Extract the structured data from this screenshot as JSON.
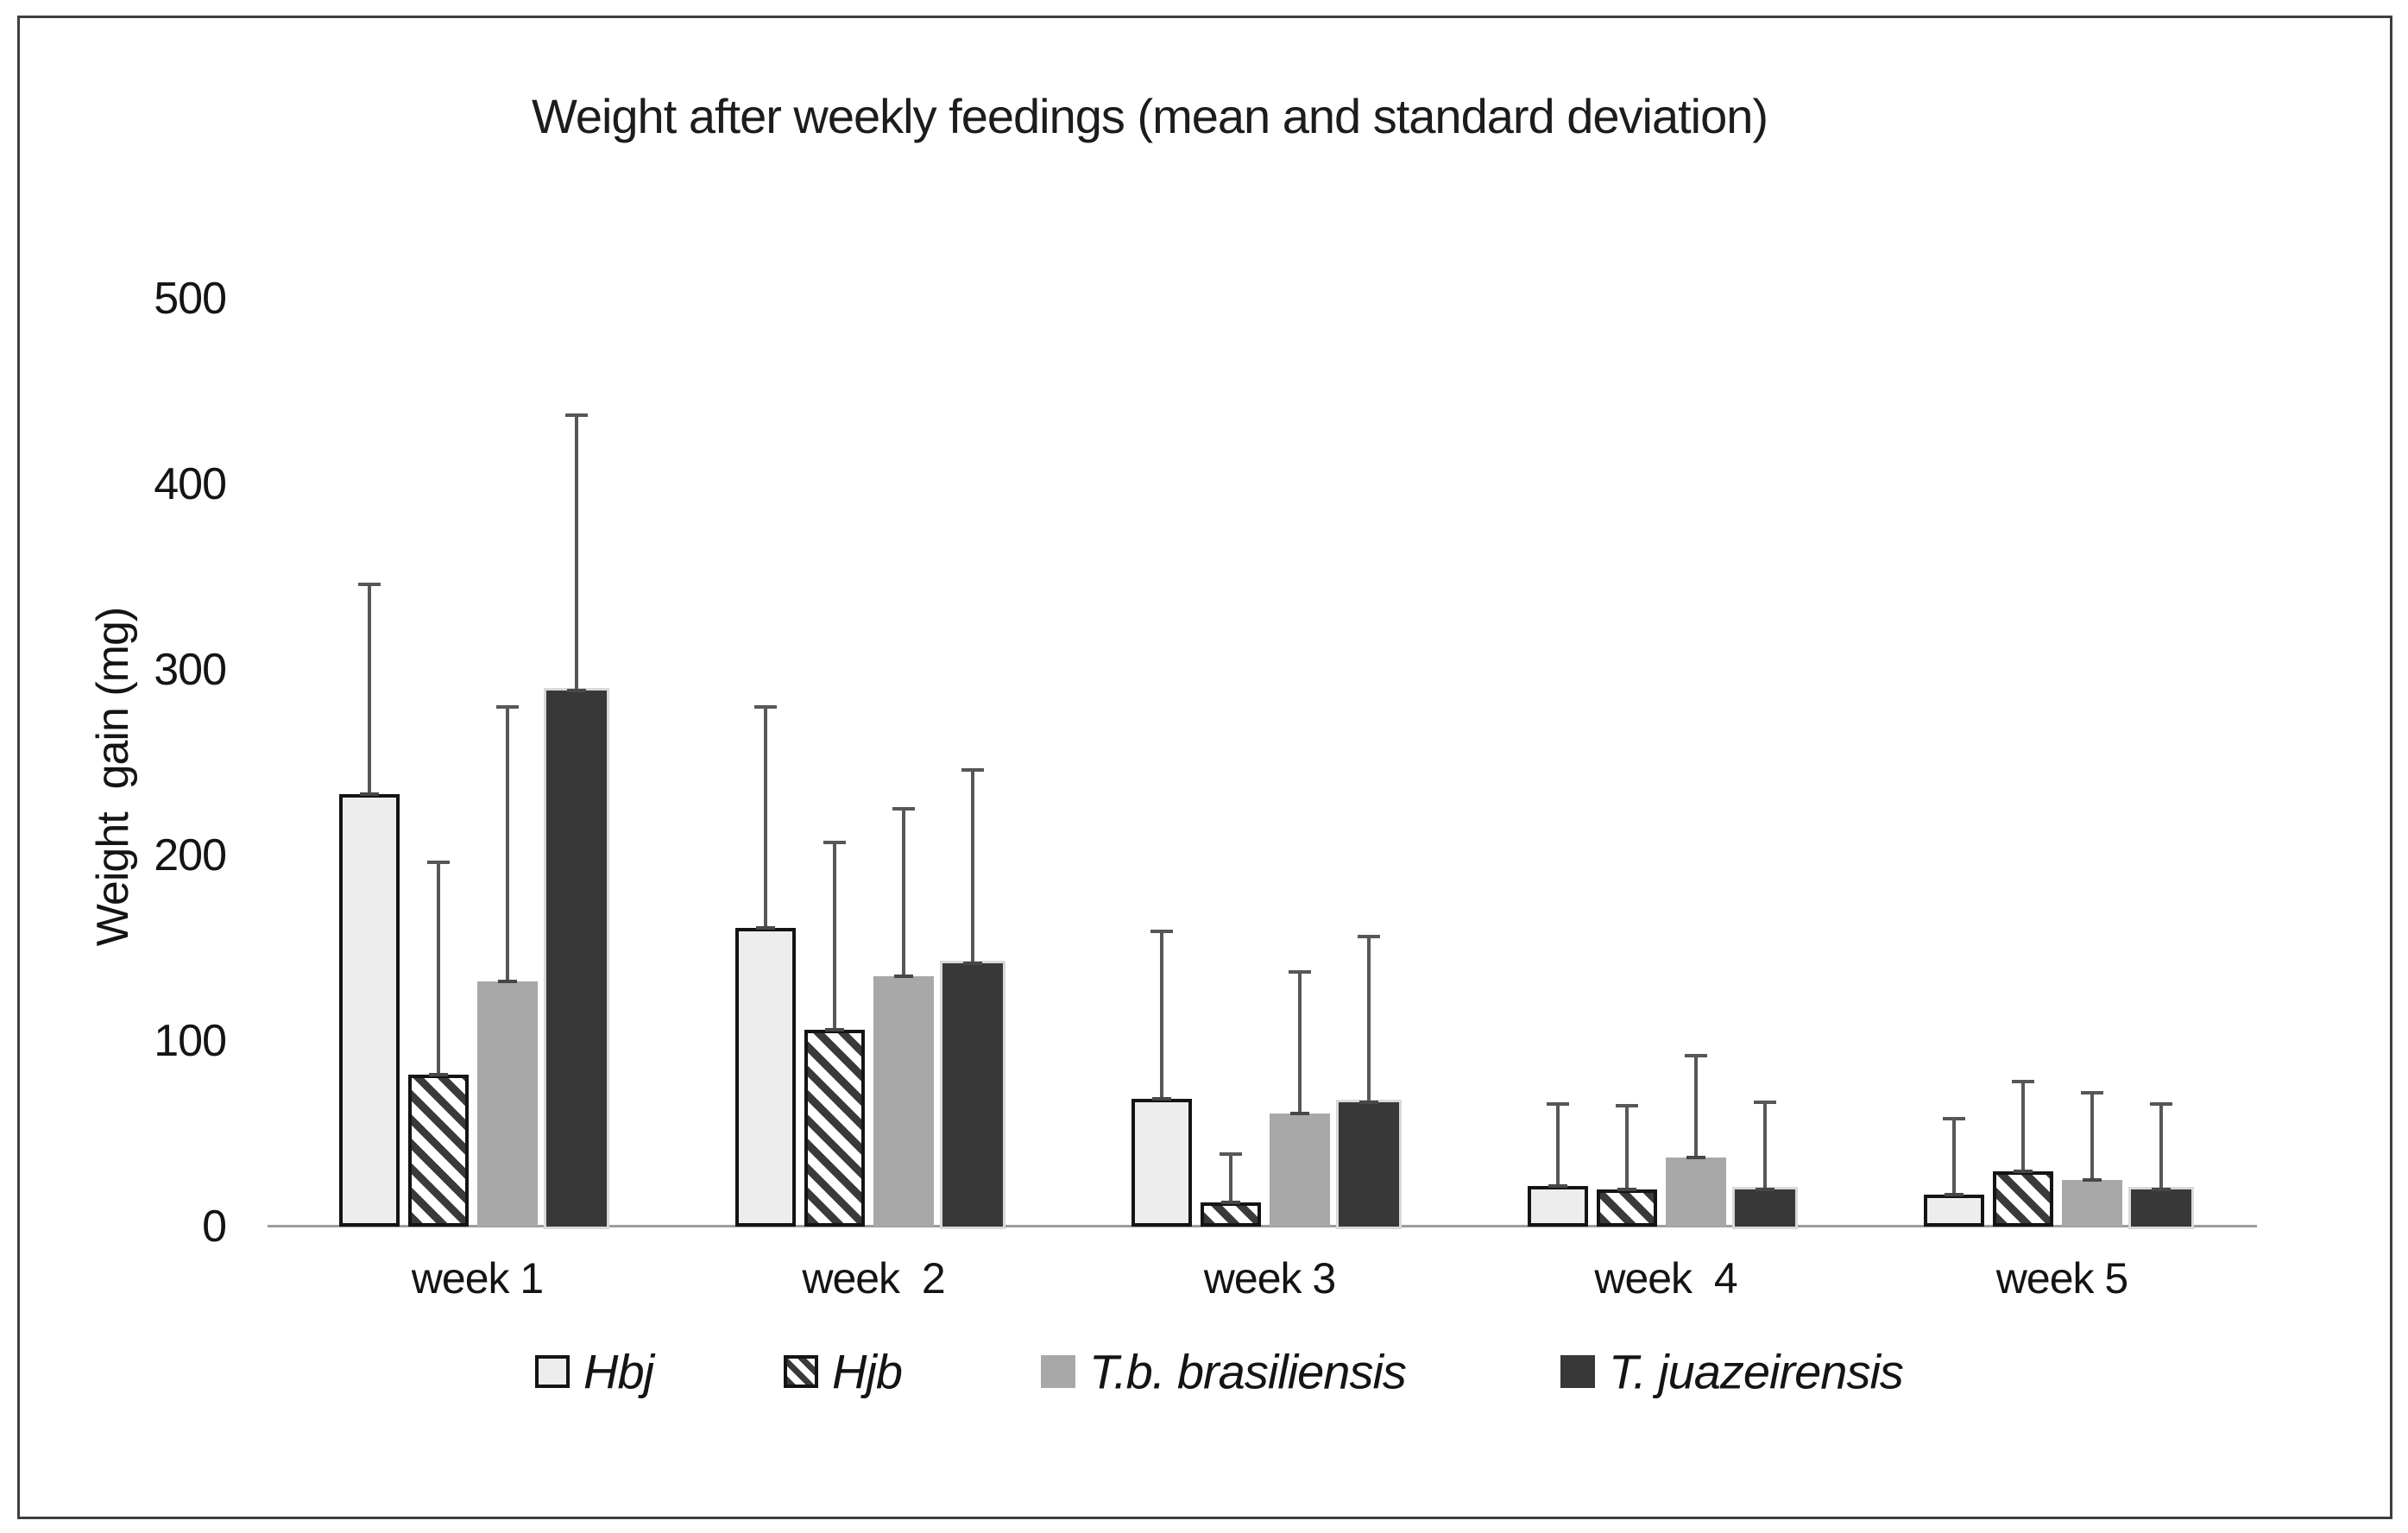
{
  "title": "Weight after weekly feedings (mean and standard deviation)",
  "y_axis": {
    "label": "Weight  gain (mg)",
    "ticks": [
      0,
      100,
      200,
      300,
      400,
      500
    ]
  },
  "x_axis": {
    "labels": [
      "week 1",
      "week  2",
      "week 3",
      "week  4",
      "week 5"
    ]
  },
  "colors": {
    "light_fill": "#ededed",
    "hatch_stripe": "#3a3a3a",
    "gray_fill": "#a8a8a8",
    "dark_fill": "#383838",
    "dark_outline": "#d9d9d9",
    "error_bar": "#575757",
    "axis_line": "#9d9d9d",
    "text": "#141414"
  },
  "chart_data": {
    "type": "bar",
    "title": "Weight after weekly feedings (mean and standard deviation)",
    "xlabel": "",
    "ylabel": "Weight  gain (mg)",
    "ylim": [
      0,
      500
    ],
    "grid": false,
    "legend_position": "bottom",
    "error_bars": "plus_sd_only",
    "categories": [
      "week 1",
      "week  2",
      "week 3",
      "week  4",
      "week 5"
    ],
    "series": [
      {
        "name": "Hbj",
        "swatch": "light",
        "values": [
          233,
          161,
          69,
          22,
          17
        ],
        "sd": [
          114,
          120,
          91,
          45,
          42
        ]
      },
      {
        "name": "Hjb",
        "swatch": "hatch",
        "values": [
          82,
          106,
          13,
          20,
          30
        ],
        "sd": [
          115,
          102,
          27,
          46,
          49
        ]
      },
      {
        "name": "T.b. brasiliensis",
        "swatch": "gray",
        "values": [
          132,
          135,
          61,
          37,
          25
        ],
        "sd": [
          149,
          91,
          77,
          56,
          48
        ]
      },
      {
        "name": "T. juazeirensis",
        "swatch": "dark",
        "values": [
          289,
          142,
          67,
          20,
          20
        ],
        "sd": [
          149,
          105,
          90,
          48,
          47
        ]
      }
    ]
  }
}
